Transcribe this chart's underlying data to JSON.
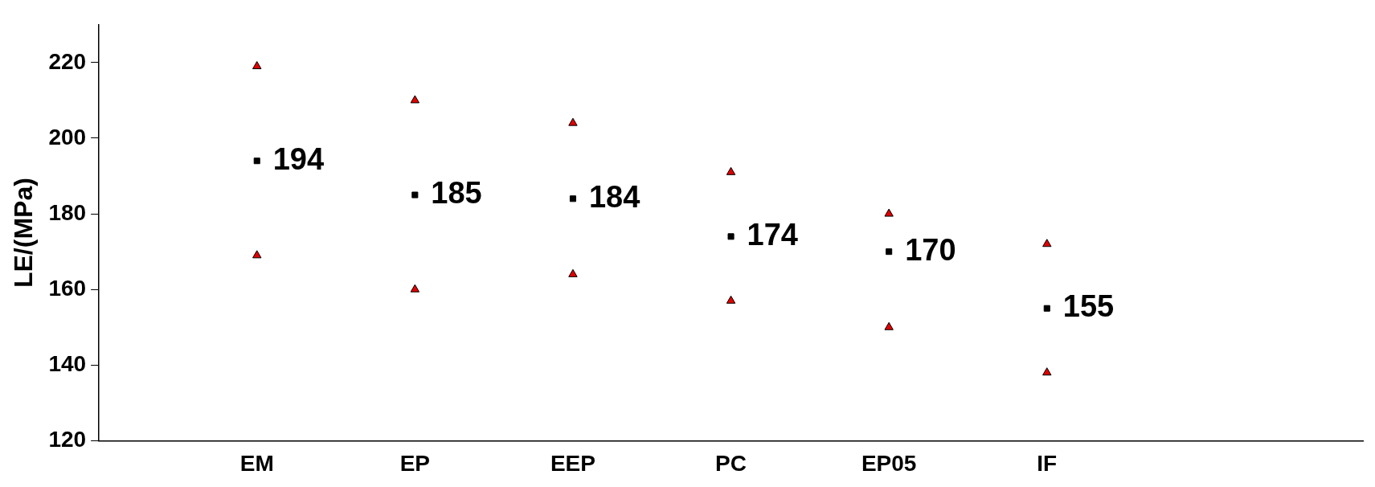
{
  "chart_data": {
    "type": "scatter",
    "ylabel": "LE/(MPa)",
    "categories": [
      null,
      "EM",
      "EP",
      "EEP",
      "PC",
      "EP05",
      "IF",
      null,
      null
    ],
    "series": [
      {
        "color": "#000000",
        "marker": "square",
        "values": [
          null,
          194,
          185,
          184,
          174,
          170,
          155,
          null,
          null
        ],
        "value_labels": [
          null,
          "194",
          "185",
          "184",
          "174",
          "170",
          "155",
          null,
          null
        ]
      },
      {
        "color": "#e00000",
        "marker": "triangle",
        "values": [
          null,
          219,
          210,
          204,
          191,
          180,
          172,
          null,
          null
        ]
      },
      {
        "color": "#e00000",
        "marker": "triangle",
        "values": [
          null,
          169,
          160,
          164,
          157,
          150,
          138,
          null,
          null
        ]
      }
    ],
    "ylim": [
      120,
      230
    ],
    "yticks": [
      120,
      140,
      160,
      180,
      200,
      220
    ],
    "grid": false,
    "legend": false
  }
}
